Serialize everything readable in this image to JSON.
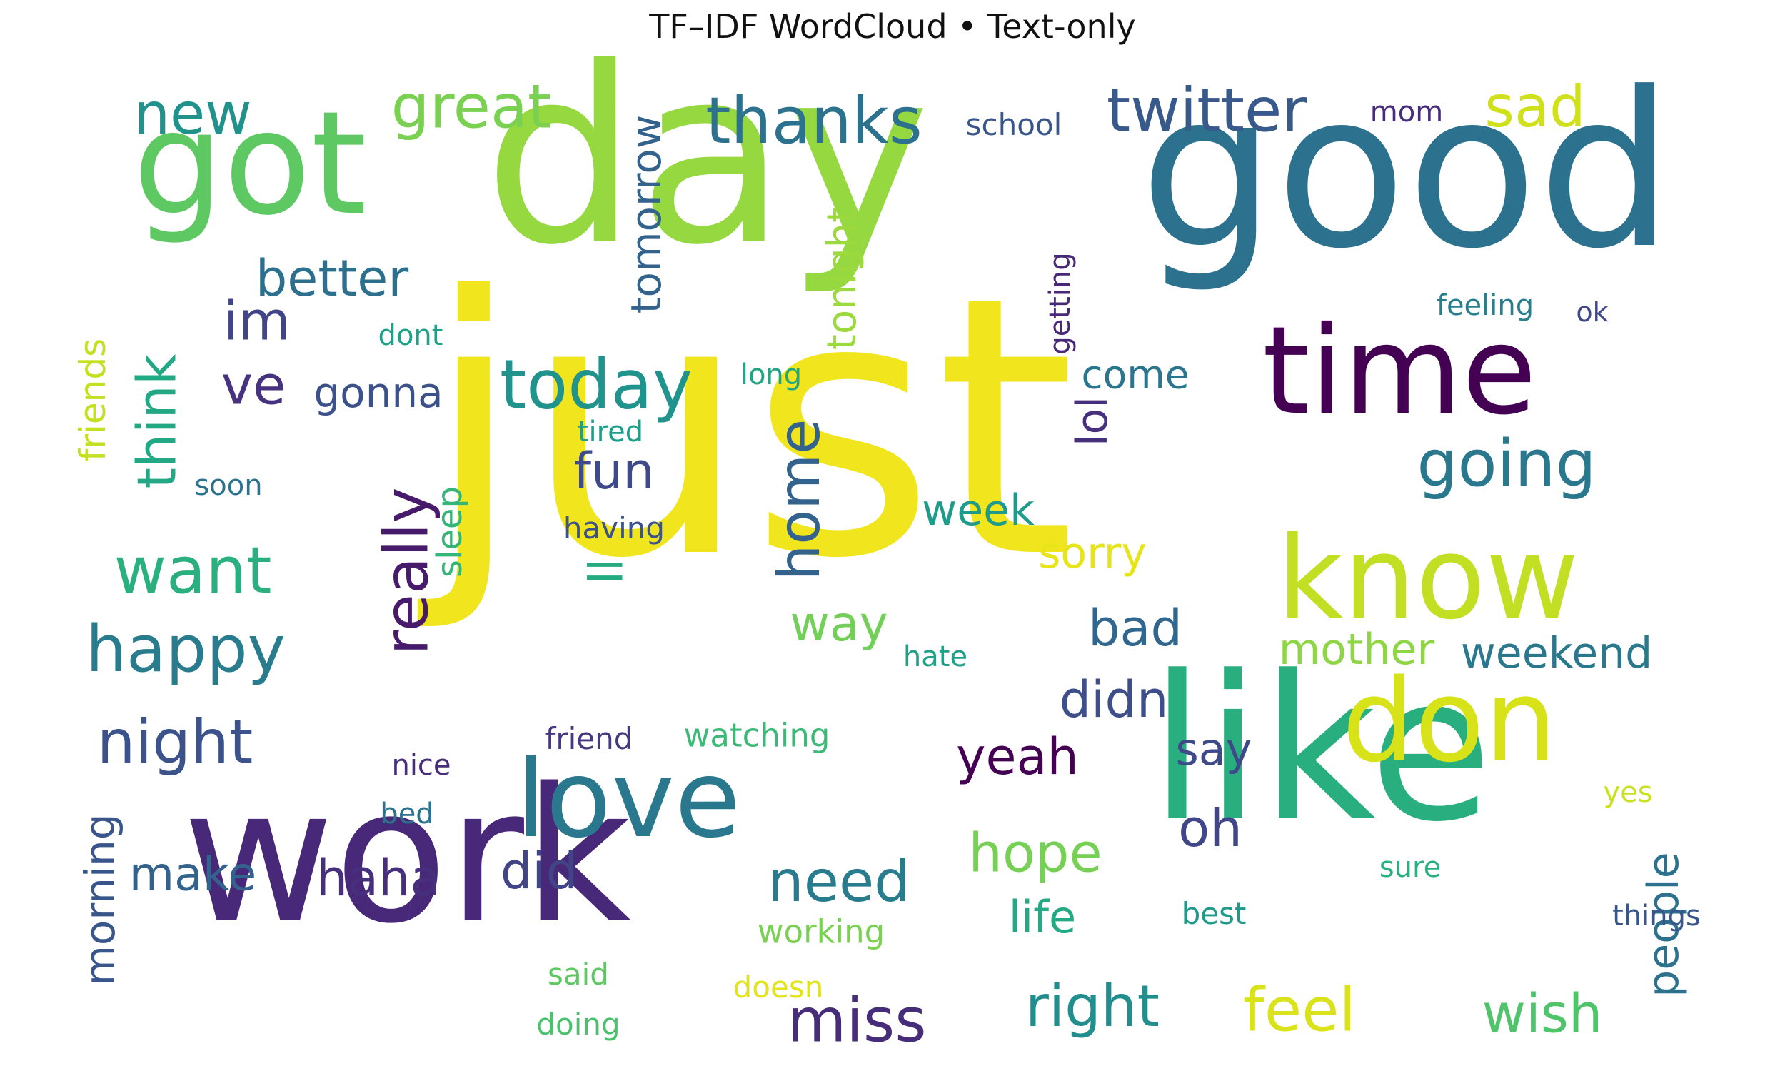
{
  "title": "TF–IDF WordCloud • Text-only",
  "words": [
    {
      "text": "just",
      "color": "#f1e51d"
    },
    {
      "text": "day",
      "color": "#95d840"
    },
    {
      "text": "good",
      "color": "#2c728e"
    },
    {
      "text": "like",
      "color": "#29af7f"
    },
    {
      "text": "work",
      "color": "#482878"
    },
    {
      "text": "got",
      "color": "#5ec962"
    },
    {
      "text": "time",
      "color": "#440154"
    },
    {
      "text": "know",
      "color": "#c2df23"
    },
    {
      "text": "don",
      "color": "#d8e219"
    },
    {
      "text": "love",
      "color": "#2a788e"
    },
    {
      "text": "today",
      "color": "#20938c"
    },
    {
      "text": "thanks",
      "color": "#2c728e"
    },
    {
      "text": "twitter",
      "color": "#38598c"
    },
    {
      "text": "great",
      "color": "#7ad151"
    },
    {
      "text": "new",
      "color": "#21918c"
    },
    {
      "text": "sad",
      "color": "#d0e11c"
    },
    {
      "text": "going",
      "color": "#2a788e"
    },
    {
      "text": "happy",
      "color": "#287c8e"
    },
    {
      "text": "want",
      "color": "#2ab07f"
    },
    {
      "text": "night",
      "color": "#3b528b"
    },
    {
      "text": "really",
      "color": "#481a6c"
    },
    {
      "text": "think",
      "color": "#22a884"
    },
    {
      "text": "better",
      "color": "#2d708e"
    },
    {
      "text": "im",
      "color": "#414487"
    },
    {
      "text": "ve",
      "color": "#46327e"
    },
    {
      "text": "home",
      "color": "#33638d"
    },
    {
      "text": "fun",
      "color": "#3e4a89"
    },
    {
      "text": "ll",
      "color": "#25ab82"
    },
    {
      "text": "tomorrow",
      "color": "#33638d"
    },
    {
      "text": "tonight",
      "color": "#9bd93c"
    },
    {
      "text": "lol",
      "color": "#46307e"
    },
    {
      "text": "week",
      "color": "#1e9b8a"
    },
    {
      "text": "sorry",
      "color": "#e7e419"
    },
    {
      "text": "bad",
      "color": "#31678e"
    },
    {
      "text": "didn",
      "color": "#3d4e8a"
    },
    {
      "text": "yeah",
      "color": "#440154"
    },
    {
      "text": "say",
      "color": "#3e4989"
    },
    {
      "text": "oh",
      "color": "#404688"
    },
    {
      "text": "hope",
      "color": "#75d054"
    },
    {
      "text": "need",
      "color": "#297b8e"
    },
    {
      "text": "life",
      "color": "#23a983"
    },
    {
      "text": "right",
      "color": "#228d8d"
    },
    {
      "text": "feel",
      "color": "#dae319"
    },
    {
      "text": "wish",
      "color": "#50c46a"
    },
    {
      "text": "miss",
      "color": "#472c7a"
    },
    {
      "text": "haha",
      "color": "#46307e"
    },
    {
      "text": "did",
      "color": "#414487"
    },
    {
      "text": "make",
      "color": "#33638d"
    },
    {
      "text": "morning",
      "color": "#39568c"
    },
    {
      "text": "friends",
      "color": "#c5e021"
    },
    {
      "text": "gonna",
      "color": "#3b518b"
    },
    {
      "text": "dont",
      "color": "#1fa088"
    },
    {
      "text": "way",
      "color": "#73d056"
    },
    {
      "text": "sleep",
      "color": "#34b679"
    },
    {
      "text": "come",
      "color": "#2a768e"
    },
    {
      "text": "getting",
      "color": "#482878"
    },
    {
      "text": "feeling",
      "color": "#277f8e"
    },
    {
      "text": "ok",
      "color": "#3f4788"
    },
    {
      "text": "mom",
      "color": "#472d7b"
    },
    {
      "text": "school",
      "color": "#39568c"
    },
    {
      "text": "long",
      "color": "#21a685"
    },
    {
      "text": "tired",
      "color": "#1f9e89"
    },
    {
      "text": "soon",
      "color": "#2c728e"
    },
    {
      "text": "having",
      "color": "#3b528b"
    },
    {
      "text": "mother",
      "color": "#8ed645"
    },
    {
      "text": "weekend",
      "color": "#2a788e"
    },
    {
      "text": "hate",
      "color": "#1fa188"
    },
    {
      "text": "friend",
      "color": "#453781"
    },
    {
      "text": "watching",
      "color": "#3aba76"
    },
    {
      "text": "nice",
      "color": "#472d7b"
    },
    {
      "text": "bed",
      "color": "#2c728e"
    },
    {
      "text": "yes",
      "color": "#cae11f"
    },
    {
      "text": "people",
      "color": "#2c728e"
    },
    {
      "text": "sure",
      "color": "#2ab07f"
    },
    {
      "text": "best",
      "color": "#1f9a8a"
    },
    {
      "text": "things",
      "color": "#39568c"
    },
    {
      "text": "working",
      "color": "#7ad151"
    },
    {
      "text": "said",
      "color": "#5ec962"
    },
    {
      "text": "doesn",
      "color": "#e2e418"
    },
    {
      "text": "doing",
      "color": "#4ac16d"
    }
  ]
}
